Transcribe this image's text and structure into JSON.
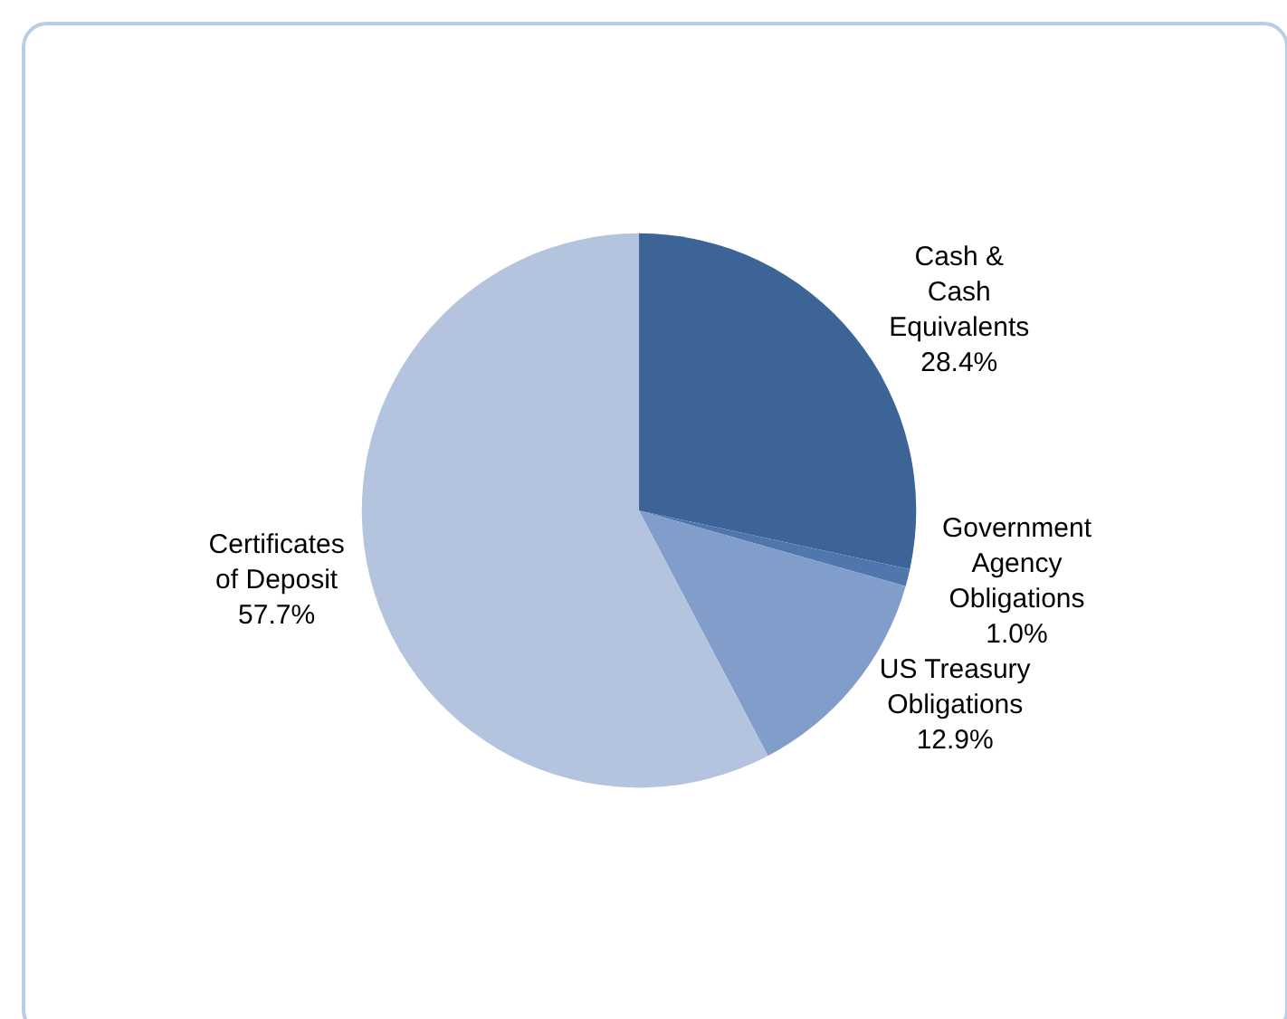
{
  "chart_data": {
    "type": "pie",
    "categories": [
      "Cash & Cash Equivalents",
      "Government Agency Obligations",
      "US Treasury Obligations",
      "Certificates of Deposit"
    ],
    "values": [
      28.4,
      1.0,
      12.9,
      57.7
    ],
    "value_labels": [
      "28.4%",
      "1.0%",
      "12.9%",
      "57.7%"
    ],
    "colors": [
      "#3d6497",
      "#4f77ad",
      "#809ec9",
      "#b4c4df"
    ],
    "legend": false
  }
}
